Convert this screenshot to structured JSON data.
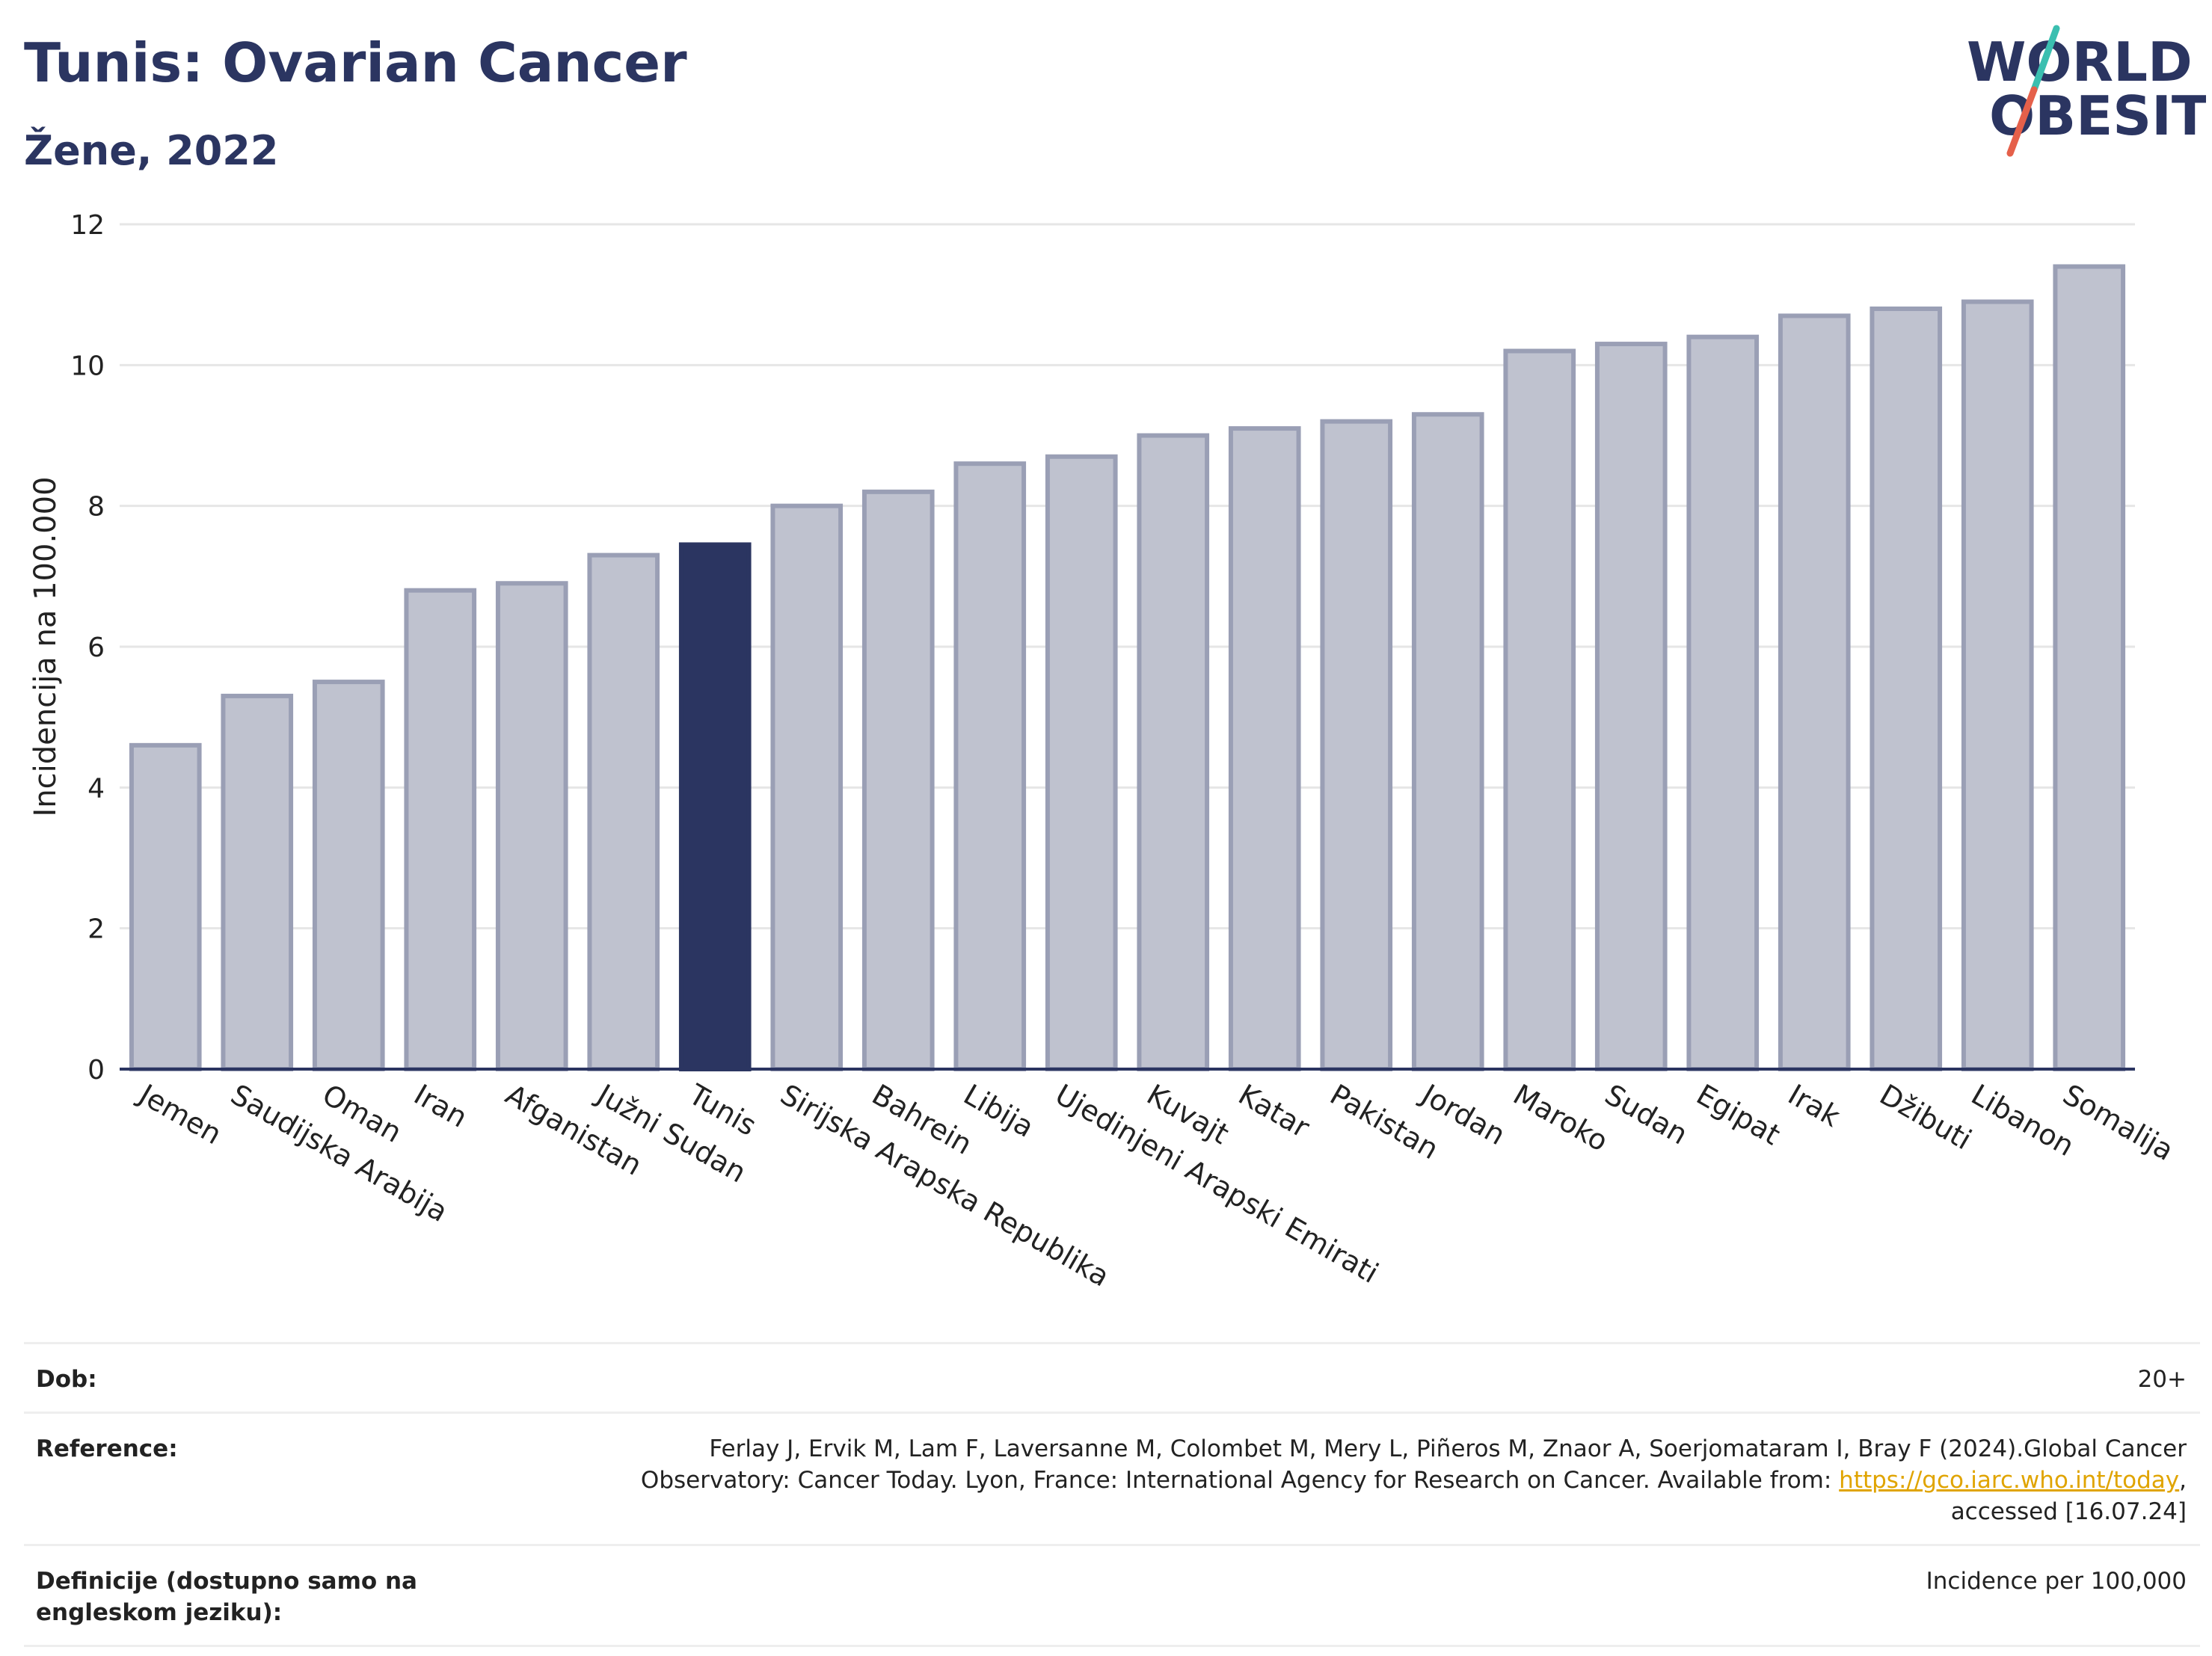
{
  "header": {
    "title": "Tunis: Ovarian Cancer",
    "subtitle": "Žene, 2022"
  },
  "logo": {
    "line1": "WORLD",
    "line2": "OBESITY",
    "slash_colors": [
      "#3bbfb0",
      "#e5604a"
    ]
  },
  "colors": {
    "bar": "#bfc2cf",
    "bar_border": "#9a9fb5",
    "highlight": "#2b3561",
    "grid": "#e6e6e6",
    "axis": "#2b3561"
  },
  "chart_data": {
    "type": "bar",
    "title": "Tunis: Ovarian Cancer",
    "subtitle": "Žene, 2022",
    "xlabel": "",
    "ylabel": "Incidencija na 100.000",
    "ylim": [
      0,
      12
    ],
    "yticks": [
      0,
      2,
      4,
      6,
      8,
      10,
      12
    ],
    "grid": true,
    "highlight": "Tunis",
    "categories": [
      "Jemen",
      "Saudijska Arabija",
      "Oman",
      "Iran",
      "Afganistan",
      "Južni Sudan",
      "Tunis",
      "Sirijska Arapska Republika",
      "Bahrein",
      "Libija",
      "Ujedinjeni Arapski Emirati",
      "Kuvajt",
      "Katar",
      "Pakistan",
      "Jordan",
      "Maroko",
      "Sudan",
      "Egipat",
      "Irak",
      "Džibuti",
      "Libanon",
      "Somalija"
    ],
    "values": [
      4.6,
      5.3,
      5.5,
      6.8,
      6.9,
      7.3,
      7.45,
      8.0,
      8.2,
      8.6,
      8.7,
      9.0,
      9.1,
      9.2,
      9.3,
      10.2,
      10.3,
      10.4,
      10.7,
      10.8,
      10.9,
      11.4
    ]
  },
  "meta": {
    "age_label": "Dob:",
    "age_value": "20+",
    "reference_label": "Reference:",
    "reference_text_1": "Ferlay J, Ervik M, Lam F, Laversanne M, Colombet M, Mery L, Piñeros M, Znaor A, Soerjomataram I, Bray F (2024).Global Cancer Observatory: Cancer Today. Lyon, France: International Agency for Research on Cancer. Available from: ",
    "reference_link": "https://gco.iarc.who.int/today",
    "reference_text_2": ", accessed [16.07.24]",
    "definitions_label": "Definicije (dostupno samo na engleskom jeziku):",
    "definitions_value": "Incidence per 100,000"
  }
}
